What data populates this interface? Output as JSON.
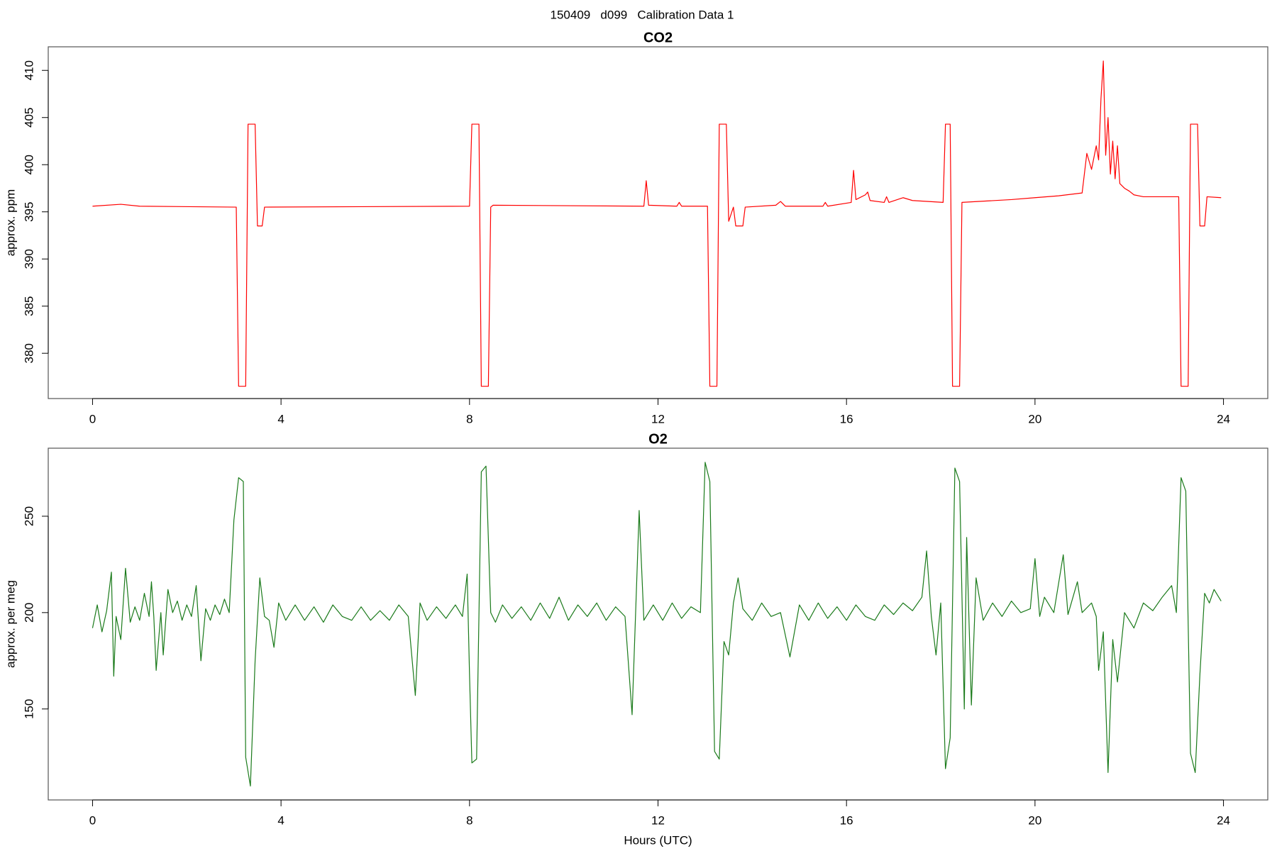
{
  "title": "150409   d099   Calibration Data 1",
  "chart_data": [
    {
      "type": "line",
      "title": "CO2",
      "ylabel": "approx. ppm",
      "grid": false,
      "xlim": [
        -0.94,
        24.94
      ],
      "ylim": [
        375.2,
        412.5
      ],
      "xticks": [
        0,
        4,
        8,
        12,
        16,
        20,
        24
      ],
      "yticks": [
        380,
        385,
        390,
        395,
        400,
        405,
        410
      ],
      "x": [
        0,
        0.6,
        1,
        3.05,
        3.1,
        3.25,
        3.3,
        3.45,
        3.5,
        3.6,
        3.65,
        8.0,
        8.05,
        8.2,
        8.25,
        8.4,
        8.45,
        8.5,
        11.7,
        11.75,
        11.8,
        12.4,
        12.45,
        12.5,
        13.05,
        13.1,
        13.25,
        13.3,
        13.45,
        13.5,
        13.6,
        13.65,
        13.8,
        13.85,
        14.5,
        14.6,
        14.7,
        15.5,
        15.55,
        15.6,
        16.1,
        16.15,
        16.2,
        16.4,
        16.45,
        16.5,
        16.8,
        16.85,
        16.9,
        17.2,
        17.4,
        18.05,
        18.1,
        18.2,
        18.25,
        18.4,
        18.45,
        19.5,
        20,
        20.5,
        21.0,
        21.1,
        21.2,
        21.3,
        21.35,
        21.4,
        21.45,
        21.5,
        21.55,
        21.6,
        21.65,
        21.7,
        21.75,
        21.8,
        21.9,
        22.0,
        22.1,
        22.3,
        23.05,
        23.1,
        23.25,
        23.3,
        23.45,
        23.5,
        23.6,
        23.65,
        23.95
      ],
      "series": [
        {
          "color": "#ff0000",
          "values": [
            395.6,
            395.8,
            395.6,
            395.5,
            376.5,
            376.5,
            404.3,
            404.3,
            393.5,
            393.5,
            395.5,
            395.6,
            404.3,
            404.3,
            376.5,
            376.5,
            395.5,
            395.7,
            395.6,
            398.3,
            395.7,
            395.6,
            396.0,
            395.6,
            395.6,
            376.5,
            376.5,
            404.3,
            404.3,
            394.0,
            395.5,
            393.5,
            393.5,
            395.5,
            395.7,
            396.1,
            395.6,
            395.6,
            396.0,
            395.6,
            396.0,
            399.4,
            396.3,
            396.8,
            397.1,
            396.2,
            396.0,
            396.6,
            396.0,
            396.5,
            396.2,
            396.0,
            404.3,
            404.3,
            376.5,
            376.5,
            396.0,
            396.3,
            396.5,
            396.7,
            397.0,
            401.2,
            399.5,
            402.0,
            400.5,
            407,
            411,
            401,
            405,
            399,
            402.5,
            398.5,
            402,
            398,
            397.5,
            397.2,
            396.8,
            396.6,
            396.6,
            376.5,
            376.5,
            404.3,
            404.3,
            393.5,
            393.5,
            396.6,
            396.5
          ]
        }
      ]
    },
    {
      "type": "line",
      "title": "O2",
      "ylabel": "approx. per meg",
      "xlabel": "Hours (UTC)",
      "grid": false,
      "xlim": [
        -0.94,
        24.94
      ],
      "ylim": [
        102.8,
        285.3
      ],
      "xticks": [
        0,
        4,
        8,
        12,
        16,
        20,
        24
      ],
      "yticks": [
        150,
        200,
        250
      ],
      "x": [
        0,
        0.1,
        0.2,
        0.3,
        0.4,
        0.45,
        0.5,
        0.6,
        0.7,
        0.8,
        0.9,
        1.0,
        1.1,
        1.2,
        1.25,
        1.3,
        1.35,
        1.45,
        1.5,
        1.6,
        1.7,
        1.8,
        1.9,
        2.0,
        2.1,
        2.2,
        2.3,
        2.4,
        2.5,
        2.6,
        2.7,
        2.8,
        2.9,
        3.0,
        3.1,
        3.2,
        3.25,
        3.35,
        3.45,
        3.55,
        3.65,
        3.75,
        3.85,
        3.95,
        4.1,
        4.3,
        4.5,
        4.7,
        4.9,
        5.1,
        5.3,
        5.5,
        5.7,
        5.9,
        6.1,
        6.3,
        6.5,
        6.7,
        6.85,
        6.95,
        7.1,
        7.3,
        7.5,
        7.7,
        7.85,
        7.95,
        8.0,
        8.05,
        8.15,
        8.25,
        8.35,
        8.45,
        8.55,
        8.7,
        8.9,
        9.1,
        9.3,
        9.5,
        9.7,
        9.9,
        10.1,
        10.3,
        10.5,
        10.7,
        10.9,
        11.1,
        11.3,
        11.45,
        11.6,
        11.7,
        11.9,
        12.1,
        12.3,
        12.5,
        12.7,
        12.9,
        13.0,
        13.1,
        13.2,
        13.3,
        13.4,
        13.5,
        13.6,
        13.7,
        13.8,
        14.0,
        14.2,
        14.4,
        14.6,
        14.8,
        15.0,
        15.2,
        15.4,
        15.6,
        15.8,
        16.0,
        16.2,
        16.4,
        16.6,
        16.8,
        17.0,
        17.2,
        17.4,
        17.6,
        17.7,
        17.8,
        17.9,
        18.0,
        18.1,
        18.2,
        18.3,
        18.4,
        18.5,
        18.55,
        18.65,
        18.75,
        18.9,
        19.1,
        19.3,
        19.5,
        19.7,
        19.9,
        20.0,
        20.1,
        20.2,
        20.4,
        20.6,
        20.7,
        20.9,
        21.0,
        21.2,
        21.3,
        21.35,
        21.45,
        21.55,
        21.65,
        21.75,
        21.9,
        22.1,
        22.3,
        22.5,
        22.7,
        22.9,
        23.0,
        23.1,
        23.2,
        23.3,
        23.4,
        23.5,
        23.6,
        23.7,
        23.8,
        23.95
      ],
      "series": [
        {
          "color": "#1a7a1a",
          "values": [
            192,
            204,
            190,
            201,
            221,
            167,
            198,
            186,
            223,
            195,
            203,
            196,
            210,
            198,
            216,
            198,
            170,
            200,
            178,
            212,
            200,
            206,
            196,
            204,
            198,
            214,
            175,
            202,
            196,
            204,
            199,
            207,
            200,
            248,
            270,
            268,
            125,
            110,
            175,
            218,
            198,
            196,
            182,
            205,
            196,
            204,
            196,
            203,
            195,
            204,
            198,
            196,
            203,
            196,
            201,
            196,
            204,
            198,
            157,
            205,
            196,
            203,
            197,
            204,
            198,
            220,
            168,
            122,
            124,
            273,
            276,
            200,
            195,
            204,
            197,
            203,
            196,
            205,
            197,
            208,
            196,
            204,
            198,
            205,
            196,
            203,
            198,
            147,
            253,
            196,
            204,
            196,
            205,
            197,
            203,
            200,
            278,
            268,
            128,
            124,
            185,
            178,
            205,
            218,
            202,
            196,
            205,
            198,
            200,
            177,
            204,
            196,
            205,
            197,
            203,
            196,
            204,
            198,
            196,
            204,
            199,
            205,
            201,
            208,
            232,
            198,
            178,
            205,
            119,
            135,
            275,
            268,
            150,
            239,
            152,
            218,
            196,
            205,
            198,
            206,
            200,
            202,
            228,
            198,
            208,
            200,
            230,
            199,
            216,
            200,
            205,
            198,
            170,
            190,
            117,
            186,
            164,
            200,
            192,
            205,
            201,
            208,
            214,
            200,
            270,
            263,
            127,
            117,
            168,
            210,
            205,
            212,
            206
          ]
        }
      ]
    }
  ]
}
